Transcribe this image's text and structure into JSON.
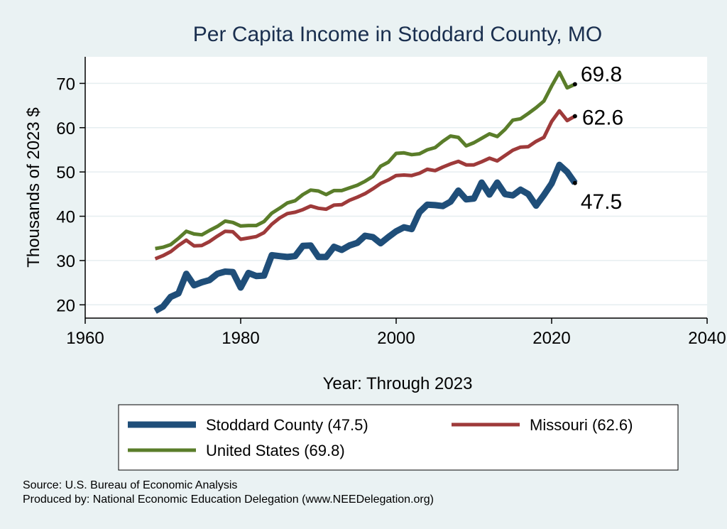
{
  "chart_data": {
    "type": "line",
    "title": "Per Capita Income in Stoddard County, MO",
    "xlabel": "Year: Through 2023",
    "ylabel": "Thousands of 2023 $",
    "xlim": [
      1960,
      2040
    ],
    "ylim": [
      17,
      76
    ],
    "xticks": [
      1960,
      1980,
      2000,
      2020,
      2040
    ],
    "yticks": [
      20,
      30,
      40,
      50,
      60,
      70
    ],
    "grid": "horizontal",
    "legend_position": "bottom",
    "x": [
      1969,
      1970,
      1971,
      1972,
      1973,
      1974,
      1975,
      1976,
      1977,
      1978,
      1979,
      1980,
      1981,
      1982,
      1983,
      1984,
      1985,
      1986,
      1987,
      1988,
      1989,
      1990,
      1991,
      1992,
      1993,
      1994,
      1995,
      1996,
      1997,
      1998,
      1999,
      2000,
      2001,
      2002,
      2003,
      2004,
      2005,
      2006,
      2007,
      2008,
      2009,
      2010,
      2011,
      2012,
      2013,
      2014,
      2015,
      2016,
      2017,
      2018,
      2019,
      2020,
      2021,
      2022,
      2023
    ],
    "series": [
      {
        "name": "Stoddard County (47.5)",
        "color": "#1f4e79",
        "values": [
          18.6,
          19.6,
          21.8,
          22.6,
          27.0,
          24.4,
          25.1,
          25.6,
          27.0,
          27.5,
          27.4,
          23.9,
          27.2,
          26.5,
          26.6,
          31.2,
          31.0,
          30.8,
          31.0,
          33.3,
          33.4,
          30.8,
          30.8,
          33.1,
          32.4,
          33.4,
          34.0,
          35.6,
          35.3,
          33.9,
          35.3,
          36.6,
          37.5,
          37.1,
          40.9,
          42.6,
          42.5,
          42.3,
          43.3,
          45.8,
          43.8,
          44.0,
          47.6,
          44.9,
          47.6,
          45.0,
          44.7,
          46.0,
          45.0,
          42.4,
          44.8,
          47.4,
          51.6,
          50.0,
          47.5
        ],
        "end_label": "47.5"
      },
      {
        "name": "Missouri (62.6)",
        "color": "#9e3a3a",
        "values": [
          30.4,
          31.1,
          32.0,
          33.4,
          34.6,
          33.3,
          33.4,
          34.3,
          35.5,
          36.6,
          36.5,
          34.8,
          35.1,
          35.4,
          36.3,
          38.2,
          39.6,
          40.6,
          40.9,
          41.5,
          42.3,
          41.8,
          41.6,
          42.5,
          42.6,
          43.6,
          44.3,
          45.1,
          46.2,
          47.4,
          48.2,
          49.2,
          49.3,
          49.2,
          49.7,
          50.6,
          50.3,
          51.1,
          51.8,
          52.4,
          51.6,
          51.6,
          52.3,
          53.1,
          52.5,
          53.7,
          54.9,
          55.6,
          55.7,
          56.9,
          57.8,
          61.4,
          63.8,
          61.6,
          62.6
        ],
        "end_label": "62.6"
      },
      {
        "name": "United States (69.8)",
        "color": "#5a7d2a",
        "values": [
          32.7,
          33.0,
          33.6,
          35.0,
          36.6,
          36.0,
          35.8,
          36.8,
          37.7,
          38.9,
          38.6,
          37.8,
          37.9,
          37.9,
          38.8,
          40.7,
          41.8,
          43.0,
          43.5,
          44.9,
          45.9,
          45.7,
          44.9,
          45.8,
          45.8,
          46.4,
          47.0,
          47.9,
          49.0,
          51.3,
          52.2,
          54.2,
          54.3,
          53.9,
          54.1,
          55.0,
          55.5,
          56.9,
          58.1,
          57.8,
          55.9,
          56.6,
          57.6,
          58.6,
          58.0,
          59.6,
          61.7,
          62.0,
          63.2,
          64.5,
          66.0,
          69.4,
          72.5,
          69.0,
          69.8
        ],
        "end_label": "69.8"
      }
    ]
  },
  "legend": {
    "items": [
      {
        "label": "Stoddard County (47.5)",
        "series": 0
      },
      {
        "label": "Missouri (62.6)",
        "series": 1
      },
      {
        "label": "United States (69.8)",
        "series": 2
      }
    ]
  },
  "source": {
    "line1": "Source: U.S. Bureau of Economic Analysis",
    "line2": "Produced by: National Economic Education Delegation (www.NEEDelegation.org)"
  }
}
